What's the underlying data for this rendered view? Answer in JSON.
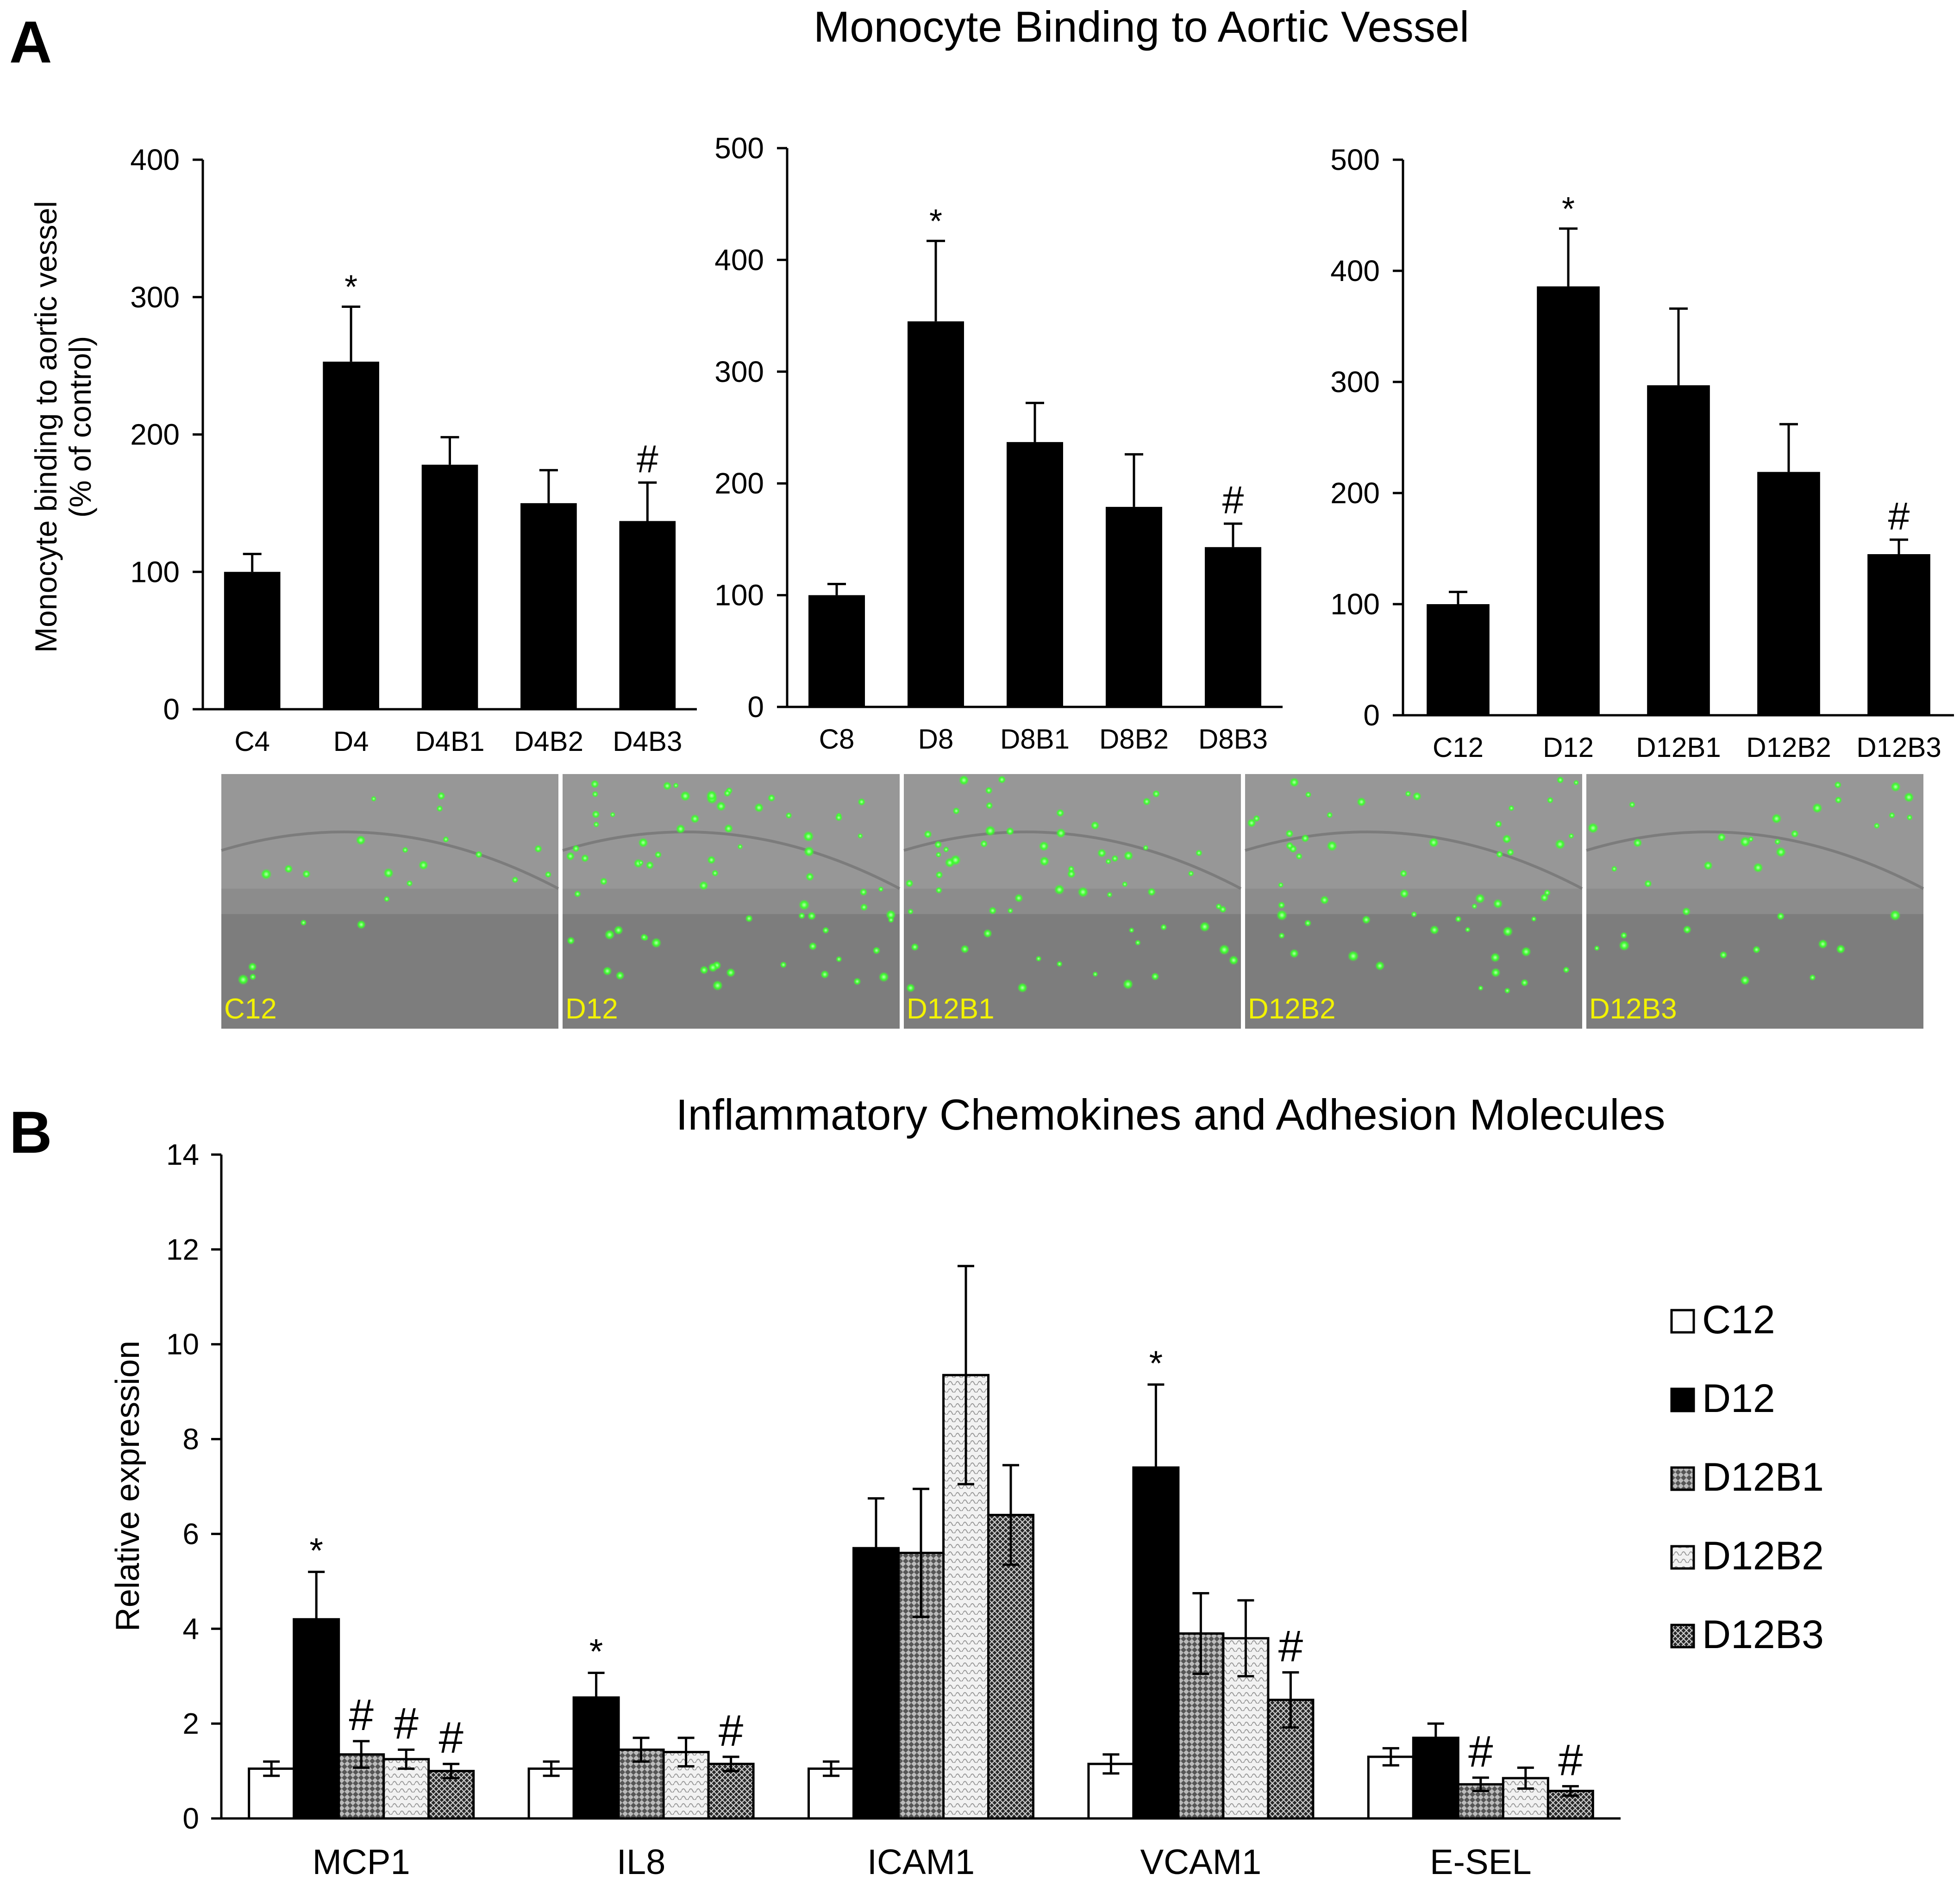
{
  "panels": {
    "A": {
      "letter": "A",
      "title": "Monocyte Binding to Aortic Vessel",
      "ylabel_line1": "Monocyte binding to aortic vessel",
      "ylabel_line2": "(% of control)"
    },
    "B": {
      "letter": "B"
    }
  },
  "micrographs": [
    {
      "label": "C12",
      "dots": 22
    },
    {
      "label": "D12",
      "dots": 70
    },
    {
      "label": "D12B1",
      "dots": 60
    },
    {
      "label": "D12B2",
      "dots": 55
    },
    {
      "label": "D12B3",
      "dots": 35
    }
  ],
  "colors": {
    "bar": "#000000",
    "dot": "#3aff2a",
    "micro_label": "#f2f200",
    "micro_bg": "#8c8c8c"
  },
  "chart_data": [
    {
      "type": "bar",
      "title": "",
      "ylabel": "Monocyte binding to aortic vessel (% of control)",
      "ylim": [
        0,
        400
      ],
      "yticks": [
        0,
        100,
        200,
        300,
        400
      ],
      "categories": [
        "C4",
        "D4",
        "D4B1",
        "D4B2",
        "D4B3"
      ],
      "values": [
        100,
        253,
        178,
        150,
        137
      ],
      "errors": [
        13,
        40,
        20,
        24,
        28
      ],
      "annotations": [
        "",
        "*",
        "",
        "",
        "#"
      ]
    },
    {
      "type": "bar",
      "title": "",
      "ylabel": "",
      "ylim": [
        0,
        500
      ],
      "yticks": [
        0,
        100,
        200,
        300,
        400,
        500
      ],
      "categories": [
        "C8",
        "D8",
        "D8B1",
        "D8B2",
        "D8B3"
      ],
      "values": [
        100,
        345,
        237,
        179,
        143
      ],
      "errors": [
        10,
        72,
        35,
        47,
        21
      ],
      "annotations": [
        "",
        "*",
        "",
        "",
        "#"
      ]
    },
    {
      "type": "bar",
      "title": "",
      "ylabel": "",
      "ylim": [
        0,
        500
      ],
      "yticks": [
        0,
        100,
        200,
        300,
        400,
        500
      ],
      "categories": [
        "C12",
        "D12",
        "D12B1",
        "D12B2",
        "D12B3"
      ],
      "values": [
        100,
        386,
        297,
        219,
        145
      ],
      "errors": [
        11,
        52,
        69,
        43,
        13
      ],
      "annotations": [
        "",
        "*",
        "",
        "",
        "#"
      ]
    },
    {
      "type": "bar",
      "title": "Inflammatory Chemokines and Adhesion Molecules",
      "xlabel": "",
      "ylabel": "Relative expression",
      "ylim": [
        0,
        14
      ],
      "yticks": [
        0,
        2,
        4,
        6,
        8,
        10,
        12,
        14
      ],
      "categories": [
        "MCP1",
        "IL8",
        "ICAM1",
        "VCAM1",
        "E-SEL"
      ],
      "series": [
        {
          "name": "C12",
          "pattern": "white",
          "values": [
            1.05,
            1.05,
            1.05,
            1.15,
            1.3
          ],
          "errors": [
            0.15,
            0.15,
            0.15,
            0.2,
            0.18
          ],
          "annotations": [
            "",
            "",
            "",
            "",
            ""
          ]
        },
        {
          "name": "D12",
          "pattern": "black",
          "values": [
            4.2,
            2.55,
            5.7,
            7.4,
            1.7
          ],
          "errors": [
            1.0,
            0.52,
            1.05,
            1.75,
            0.3
          ],
          "annotations": [
            "*",
            "*",
            "",
            "*",
            ""
          ]
        },
        {
          "name": "D12B1",
          "pattern": "dense-grid",
          "values": [
            1.35,
            1.45,
            5.6,
            3.9,
            0.72
          ],
          "errors": [
            0.28,
            0.25,
            1.35,
            0.85,
            0.14
          ],
          "annotations": [
            "#",
            "",
            "",
            "",
            "#"
          ]
        },
        {
          "name": "D12B2",
          "pattern": "light-wave",
          "values": [
            1.25,
            1.4,
            9.35,
            3.8,
            0.85
          ],
          "errors": [
            0.2,
            0.3,
            2.3,
            0.8,
            0.22
          ],
          "annotations": [
            "#",
            "",
            "",
            "",
            ""
          ]
        },
        {
          "name": "D12B3",
          "pattern": "crosshatch",
          "values": [
            1.0,
            1.15,
            6.4,
            2.5,
            0.58
          ],
          "errors": [
            0.15,
            0.15,
            1.05,
            0.58,
            0.1
          ],
          "annotations": [
            "#",
            "#",
            "",
            "#",
            "#"
          ]
        }
      ],
      "legend": "right"
    }
  ]
}
